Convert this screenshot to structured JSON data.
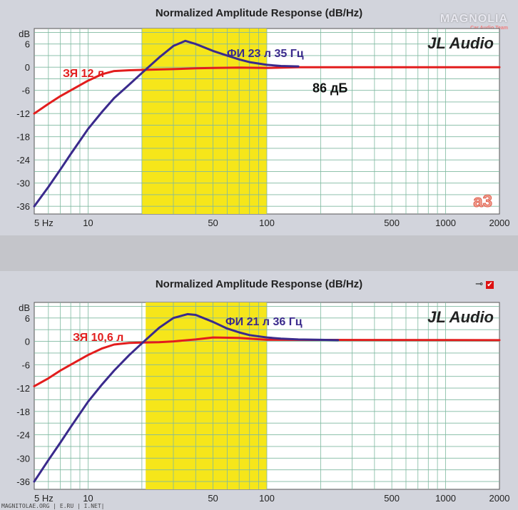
{
  "logo": {
    "name": "MAGNOLIA",
    "sub": "Car Audio Team"
  },
  "footer": "MAGNITOLAE.ORG | E.RU | I.NET|",
  "panels": [
    {
      "title": "Normalized Amplitude Response (dB/Hz)",
      "icons": [
        "plug-icon",
        "checkbox-icon"
      ],
      "check": "✔"
    },
    {
      "title": "Normalized Amplitude Response (dB/Hz)",
      "icons": [
        "plug-icon",
        "checkbox-icon"
      ],
      "check": "✔"
    }
  ],
  "chart_data": [
    {
      "type": "line",
      "title": "Normalized Amplitude Response (dB/Hz)",
      "xscale": "log",
      "xlim": [
        5,
        2000
      ],
      "ylim": [
        -38,
        10
      ],
      "ylabel": "dB",
      "xticks": [
        5,
        10,
        50,
        100,
        500,
        1000,
        2000
      ],
      "xtick_labels": [
        "5 Hz",
        "10",
        "50",
        "100",
        "500",
        "1000",
        "2000"
      ],
      "yticks": [
        6,
        0,
        -6,
        -12,
        -18,
        -24,
        -30,
        -36
      ],
      "grid": true,
      "highlight_band": {
        "from": 20,
        "to": 100,
        "color": "#f6e61a"
      },
      "annotations": {
        "brand": "JL Audio",
        "sensitivity": "86 дБ",
        "badge": "a3"
      },
      "series": [
        {
          "name": "ЗЯ 12 л",
          "color": "#e21d1d",
          "x": [
            5,
            6,
            7,
            8,
            10,
            12,
            14,
            17,
            20,
            25,
            30,
            40,
            50,
            70,
            100,
            150,
            2000
          ],
          "y": [
            -12,
            -9.5,
            -7.5,
            -6,
            -3.5,
            -1.8,
            -1,
            -0.8,
            -0.7,
            -0.6,
            -0.5,
            -0.3,
            -0.2,
            -0.1,
            -0.2,
            0,
            0
          ]
        },
        {
          "name": "ФИ 23 л 35 Гц",
          "color": "#3a2a8c",
          "x": [
            5,
            6,
            7,
            8,
            10,
            12,
            14,
            17,
            20,
            25,
            30,
            35,
            40,
            50,
            60,
            70,
            80,
            100,
            120,
            150
          ],
          "y": [
            -36,
            -31,
            -26.5,
            -22.5,
            -16,
            -11.5,
            -8,
            -4.5,
            -1.5,
            2.5,
            5.5,
            6.8,
            6,
            4.2,
            3,
            2,
            1.3,
            0.6,
            0.3,
            0.2
          ]
        }
      ]
    },
    {
      "type": "line",
      "title": "Normalized Amplitude Response (dB/Hz)",
      "xscale": "log",
      "xlim": [
        5,
        2000
      ],
      "ylim": [
        -38,
        10
      ],
      "ylabel": "dB",
      "xticks": [
        5,
        10,
        50,
        100,
        500,
        1000,
        2000
      ],
      "xtick_labels": [
        "5 Hz",
        "10",
        "50",
        "100",
        "500",
        "1000",
        "2000"
      ],
      "yticks": [
        6,
        0,
        -6,
        -12,
        -18,
        -24,
        -30,
        -36
      ],
      "grid": true,
      "highlight_band": {
        "from": 21,
        "to": 100,
        "color": "#f6e61a"
      },
      "annotations": {
        "brand": "JL Audio"
      },
      "series": [
        {
          "name": "ЗЯ 10,6 л",
          "color": "#e21d1d",
          "x": [
            5,
            6,
            7,
            8,
            10,
            12,
            14,
            17,
            20,
            25,
            30,
            40,
            50,
            70,
            100,
            2000
          ],
          "y": [
            -11.5,
            -9.5,
            -7.5,
            -6,
            -3.5,
            -1.8,
            -0.8,
            -0.4,
            -0.3,
            -0.2,
            0,
            0.5,
            1,
            0.9,
            0.4,
            0.3
          ]
        },
        {
          "name": "ФИ 21 л 36 Гц",
          "color": "#3a2a8c",
          "x": [
            5,
            6,
            7,
            8,
            10,
            12,
            14,
            17,
            20,
            25,
            30,
            36,
            40,
            50,
            60,
            70,
            80,
            100,
            120,
            150,
            200,
            250
          ],
          "y": [
            -36,
            -30.5,
            -26,
            -22,
            -15.5,
            -11,
            -7.5,
            -3.5,
            -0.5,
            3.5,
            6,
            7,
            6.8,
            5,
            3.3,
            2.3,
            1.6,
            1,
            0.7,
            0.5,
            0.4,
            0.3
          ]
        }
      ]
    }
  ]
}
